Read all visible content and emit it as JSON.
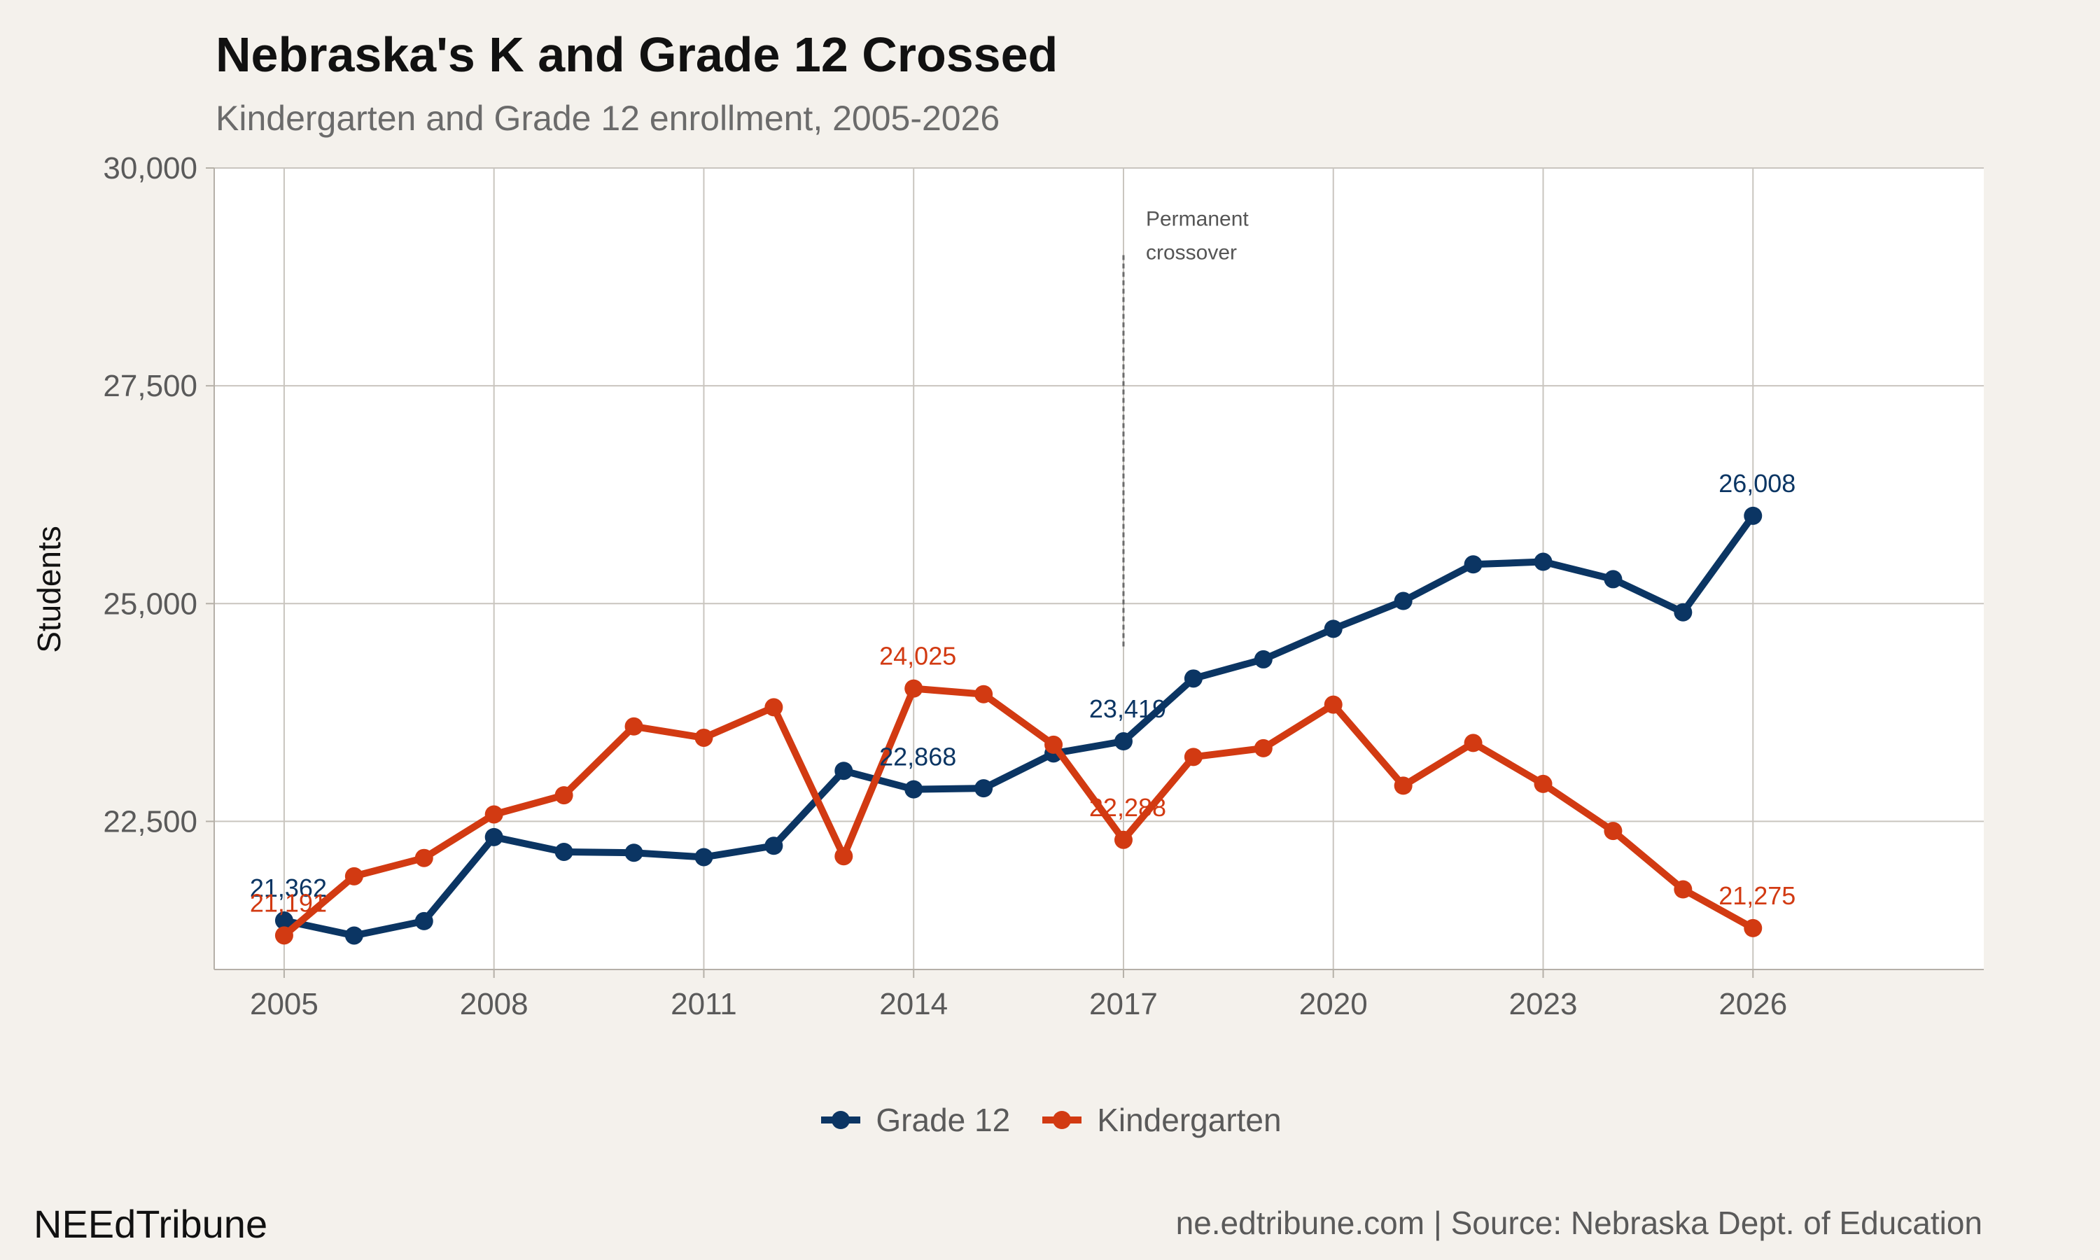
{
  "chart_data": {
    "type": "line",
    "title": "Nebraska's K and Grade 12 Crossed",
    "subtitle": "Kindergarten and Grade 12 enrollment, 2005-2026",
    "xlabel": "",
    "ylabel": "Students",
    "xlim": [
      2004,
      2029.3
    ],
    "ylim": [
      20800,
      30000
    ],
    "x_ticks": [
      2005,
      2008,
      2011,
      2014,
      2017,
      2020,
      2023,
      2026
    ],
    "x_tick_labels": [
      "2005",
      "2008",
      "2011",
      "2014",
      "2017",
      "2020",
      "2023",
      "2026"
    ],
    "y_ticks": [
      22500,
      25000,
      27500,
      30000
    ],
    "y_tick_labels": [
      "22,500",
      "25,000",
      "27,500",
      "30,000"
    ],
    "grid": true,
    "legend_position": "bottom",
    "x": [
      2005,
      2006,
      2007,
      2008,
      2009,
      2010,
      2011,
      2012,
      2013,
      2014,
      2015,
      2016,
      2017,
      2018,
      2019,
      2020,
      2021,
      2022,
      2023,
      2024,
      2025,
      2026
    ],
    "series": [
      {
        "name": "Grade 12",
        "color": "#0b3563",
        "values": [
          21362,
          21190,
          21355,
          22320,
          22150,
          22140,
          22090,
          22220,
          23080,
          22868,
          22880,
          23280,
          23419,
          24140,
          24360,
          24710,
          25030,
          25450,
          25480,
          25280,
          24900,
          26008
        ]
      },
      {
        "name": "Kindergarten",
        "color": "#d23a12",
        "values": [
          21191,
          21870,
          22080,
          22580,
          22800,
          23590,
          23460,
          23810,
          22100,
          24025,
          23960,
          23380,
          22288,
          23240,
          23340,
          23840,
          22910,
          23400,
          22930,
          22390,
          21720,
          21275
        ]
      }
    ],
    "data_labels": [
      {
        "series": "Grade 12",
        "x": 2005,
        "text": "21,362"
      },
      {
        "series": "Kindergarten",
        "x": 2005,
        "text": "21,191"
      },
      {
        "series": "Grade 12",
        "x": 2014,
        "text": "22,868"
      },
      {
        "series": "Kindergarten",
        "x": 2014,
        "text": "24,025"
      },
      {
        "series": "Grade 12",
        "x": 2017,
        "text": "23,419"
      },
      {
        "series": "Kindergarten",
        "x": 2017,
        "text": "22,288"
      },
      {
        "series": "Grade 12",
        "x": 2026,
        "text": "26,008"
      },
      {
        "series": "Kindergarten",
        "x": 2026,
        "text": "21,275"
      }
    ],
    "annotation": {
      "x": 2017,
      "y_from": 24500,
      "y_to": 29000,
      "style": "dashed",
      "lines": [
        "Permanent",
        "crossover"
      ]
    }
  },
  "legend": {
    "items": [
      {
        "label": "Grade 12",
        "color": "#0b3563"
      },
      {
        "label": "Kindergarten",
        "color": "#d23a12"
      }
    ]
  },
  "footer": {
    "brand": "NEEdTribune",
    "source": "ne.edtribune.com | Source: Nebraska Dept. of Education"
  }
}
